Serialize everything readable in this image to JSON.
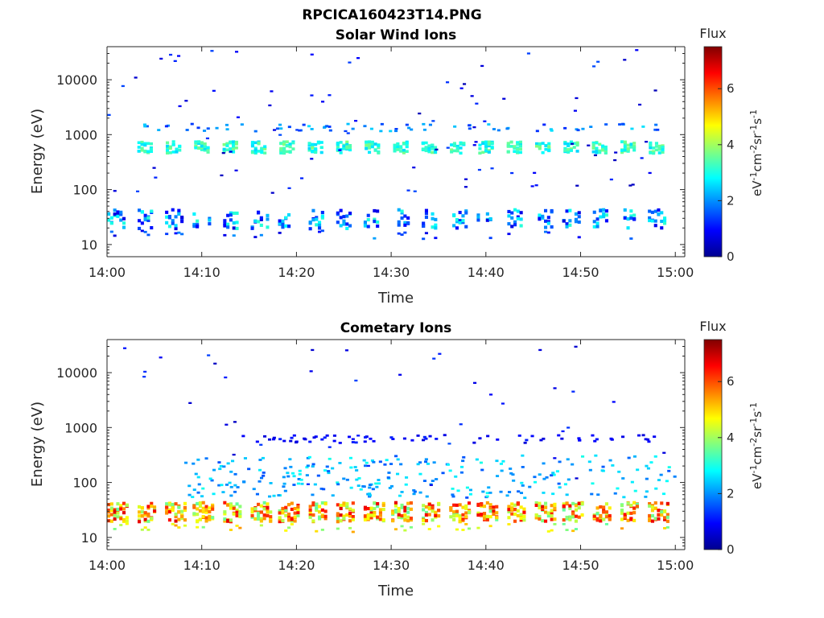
{
  "figure_title": "RPCICA160423T14.PNG",
  "colors": {
    "colormap": [
      "#00008f",
      "#0000ff",
      "#0080ff",
      "#00ffff",
      "#80ff80",
      "#ffff00",
      "#ff8000",
      "#ff0000",
      "#800000"
    ],
    "axis": "#262626"
  },
  "chart_data": [
    {
      "type": "heatmap",
      "title": "Solar Wind Ions",
      "xlabel": "Time",
      "ylabel": "Energy (eV)",
      "x_ticks": [
        "14:00",
        "14:10",
        "14:20",
        "14:30",
        "14:40",
        "14:50",
        "15:00"
      ],
      "xlim": [
        "14:00",
        "15:01"
      ],
      "yscale": "log",
      "ylim": [
        6,
        40000
      ],
      "y_ticks": [
        {
          "value": 10,
          "label": "10"
        },
        {
          "value": 100,
          "label": "100"
        },
        {
          "value": 1000,
          "label": "1000"
        },
        {
          "value": 10000,
          "label": "10000"
        }
      ],
      "colorbar": {
        "title": "Flux",
        "label": "eV-1cm-2sr-1s-1",
        "range": [
          0,
          7.5
        ],
        "ticks": [
          "0",
          "2",
          "4",
          "6"
        ]
      },
      "bands": [
        {
          "energy_range": [
            430,
            700
          ],
          "flux": [
            2.5,
            3.8
          ],
          "time_range": [
            "14:04",
            "14:59"
          ],
          "description": "proton bursts every ~3 min"
        },
        {
          "energy_range": [
            18,
            40
          ],
          "flux": [
            0.6,
            3.2
          ],
          "time_range": [
            "14:00",
            "15:00"
          ],
          "description": "low-energy band"
        },
        {
          "energy_range": [
            1100,
            1500
          ],
          "flux": [
            1.2,
            2.6
          ],
          "time_range": [
            "14:02",
            "14:58"
          ],
          "description": "sparse upper band"
        }
      ]
    },
    {
      "type": "heatmap",
      "title": "Cometary Ions",
      "xlabel": "Time",
      "ylabel": "Energy (eV)",
      "x_ticks": [
        "14:00",
        "14:10",
        "14:20",
        "14:30",
        "14:40",
        "14:50",
        "15:00"
      ],
      "xlim": [
        "14:00",
        "15:01"
      ],
      "yscale": "log",
      "ylim": [
        6,
        40000
      ],
      "y_ticks": [
        {
          "value": 10,
          "label": "10"
        },
        {
          "value": 100,
          "label": "100"
        },
        {
          "value": 1000,
          "label": "1000"
        },
        {
          "value": 10000,
          "label": "10000"
        }
      ],
      "colorbar": {
        "title": "Flux",
        "label": "eV-1cm-2sr-1s-1",
        "range": [
          0,
          7.5
        ],
        "ticks": [
          "0",
          "2",
          "4",
          "6"
        ]
      },
      "bands": [
        {
          "energy_range": [
            18,
            40
          ],
          "flux": [
            3.5,
            6.8
          ],
          "time_range": [
            "14:00",
            "15:00"
          ],
          "description": "dense low-energy band"
        },
        {
          "energy_range": [
            50,
            300
          ],
          "flux": [
            1.5,
            3.0
          ],
          "time_range": [
            "14:08",
            "15:00"
          ],
          "description": "scattered spikes"
        },
        {
          "energy_range": [
            500,
            700
          ],
          "flux": [
            0.6,
            1.2
          ],
          "time_range": [
            "14:14",
            "14:58"
          ],
          "description": "sparse upper band"
        }
      ]
    }
  ]
}
